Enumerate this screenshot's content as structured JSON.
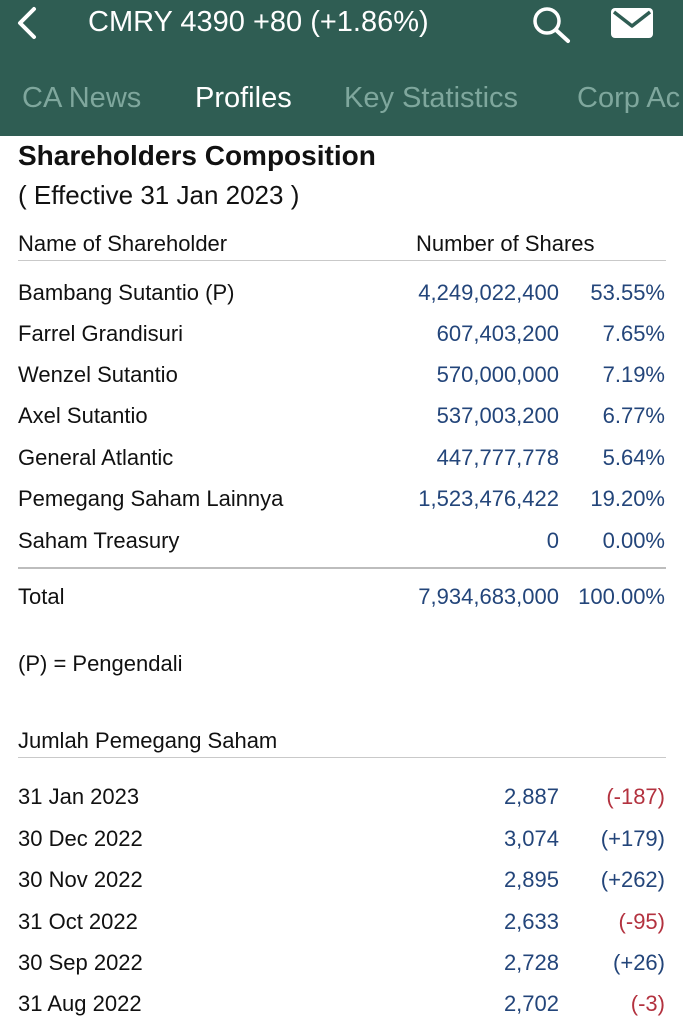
{
  "header": {
    "title": "CMRY  4390 +80 (+1.86%)",
    "tabs": [
      {
        "label": "CA News",
        "active": false
      },
      {
        "label": "Profiles",
        "active": true
      },
      {
        "label": "Key Statistics",
        "active": false
      },
      {
        "label": "Corp Ac",
        "active": false
      }
    ],
    "icons": [
      "back-chevron-icon",
      "search-icon",
      "mail-icon"
    ],
    "colors": {
      "bar": "#2f5d53",
      "tab_inactive": "#7fa79d",
      "tab_active": "#ffffff"
    }
  },
  "composition": {
    "title": "Shareholders Composition",
    "subtitle": "( Effective 31 Jan 2023 )",
    "col_name": "Name of Shareholder",
    "col_shares": "Number of Shares",
    "rows": [
      {
        "name": "Bambang Sutantio (P)",
        "shares": "4,249,022,400",
        "pct": "53.55%"
      },
      {
        "name": "Farrel Grandisuri",
        "shares": "607,403,200",
        "pct": "7.65%"
      },
      {
        "name": "Wenzel Sutantio",
        "shares": "570,000,000",
        "pct": "7.19%"
      },
      {
        "name": "Axel Sutantio",
        "shares": "537,003,200",
        "pct": "6.77%"
      },
      {
        "name": "General Atlantic",
        "shares": "447,777,778",
        "pct": "5.64%"
      },
      {
        "name": "Pemegang Saham Lainnya",
        "shares": "1,523,476,422",
        "pct": "19.20%"
      },
      {
        "name": "Saham Treasury",
        "shares": "0",
        "pct": "0.00%"
      }
    ],
    "total": {
      "name": "Total",
      "shares": "7,934,683,000",
      "pct": "100.00%"
    },
    "note": "(P) = Pengendali"
  },
  "holders": {
    "title": "Jumlah Pemegang Saham",
    "rows": [
      {
        "date": "31 Jan 2023",
        "count": "2,887",
        "change": "(-187)",
        "direction": "down"
      },
      {
        "date": "30 Dec 2022",
        "count": "3,074",
        "change": "(+179)",
        "direction": "up"
      },
      {
        "date": "30 Nov 2022",
        "count": "2,895",
        "change": "(+262)",
        "direction": "up"
      },
      {
        "date": "31 Oct 2022",
        "count": "2,633",
        "change": "(-95)",
        "direction": "down"
      },
      {
        "date": "30 Sep 2022",
        "count": "2,728",
        "change": "(+26)",
        "direction": "up"
      },
      {
        "date": "31 Aug 2022",
        "count": "2,702",
        "change": "(-3)",
        "direction": "down"
      }
    ]
  }
}
